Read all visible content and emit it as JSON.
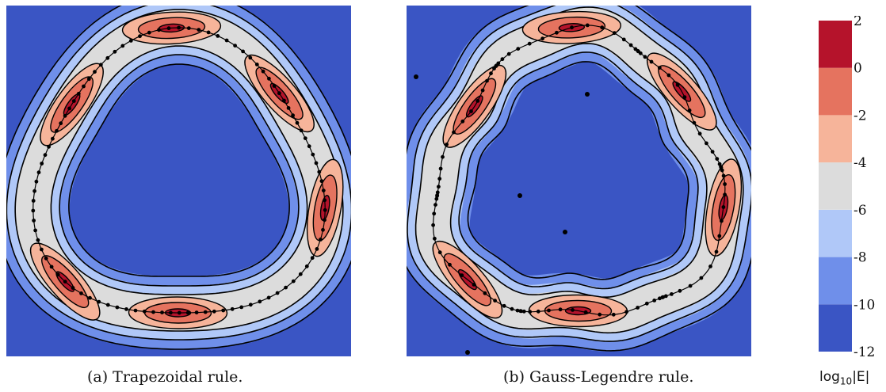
{
  "chart_data": [
    {
      "type": "heatmap",
      "caption_tag": "(a)",
      "caption_text": "Trapezoidal rule.",
      "colorbar_label": "log_{10}|E|",
      "curve": "closed trefoil contour",
      "node_distribution": "uniform",
      "peak_lobes": 6
    },
    {
      "type": "heatmap",
      "caption_tag": "(b)",
      "caption_text": "Gauss-Legendre rule.",
      "colorbar_label": "log_{10}|E|",
      "curve": "closed trefoil contour",
      "node_distribution": "clustered at panel ends",
      "peak_lobes": 6
    }
  ],
  "colorbar": {
    "label_main": "log",
    "label_sub": "10",
    "label_tail": "|E|",
    "ticks": [
      "2",
      "0",
      "-2",
      "-4",
      "-6",
      "-8",
      "-10",
      "-12"
    ],
    "range": [
      -12,
      2
    ],
    "levels": [
      {
        "from": -12,
        "to": -10,
        "color": "#3a55c4"
      },
      {
        "from": -10,
        "to": -8,
        "color": "#6f8fea"
      },
      {
        "from": -8,
        "to": -6,
        "color": "#b0c8f8"
      },
      {
        "from": -6,
        "to": -4,
        "color": "#dcdcdc"
      },
      {
        "from": -4,
        "to": -2,
        "color": "#f6b49a"
      },
      {
        "from": -2,
        "to": 0,
        "color": "#e5735f"
      },
      {
        "from": 0,
        "to": 2,
        "color": "#b5132b"
      }
    ]
  },
  "colors": {
    "background": "#3a55c4",
    "contour": "#000000",
    "nodes": "#000000"
  }
}
